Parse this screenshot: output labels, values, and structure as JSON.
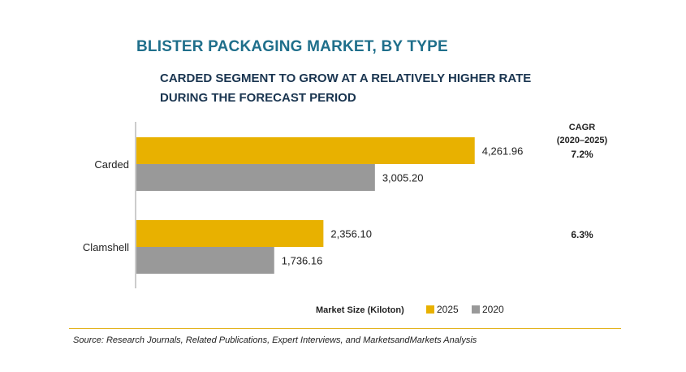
{
  "header": {
    "title": "BLISTER PACKAGING MARKET, BY TYPE",
    "subtitle": "CARDED SEGMENT TO GROW AT A RELATIVELY HIGHER RATE DURING THE FORECAST PERIOD"
  },
  "chart_data": {
    "type": "bar",
    "orientation": "horizontal",
    "categories": [
      "Carded",
      "Clamshell"
    ],
    "series": [
      {
        "name": "2025",
        "color": "#e8b100",
        "values": [
          4261.96,
          2356.1
        ],
        "labels": [
          "4,261.96",
          "2,356.10"
        ]
      },
      {
        "name": "2020",
        "color": "#999999",
        "values": [
          3005.2,
          1736.16
        ],
        "labels": [
          "3,005.20",
          "1,736.16"
        ]
      }
    ],
    "xlabel": "Market Size (Kiloton)",
    "xlim": [
      0,
      4500
    ],
    "legend_position": "bottom",
    "cagr": {
      "header_line1": "CAGR",
      "header_line2": "(2020–2025)",
      "values": [
        "7.2%",
        "6.3%"
      ]
    }
  },
  "footer": {
    "source": "Source: Research Journals, Related Publications, Expert Interviews, and MarketsandMarkets Analysis"
  }
}
